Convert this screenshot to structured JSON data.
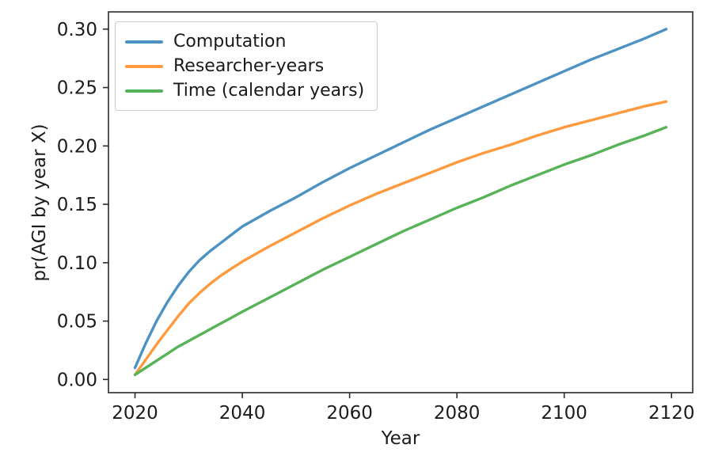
{
  "figure": {
    "background": "#ffffff",
    "axis_color": "#2b2b2b",
    "tick_color": "#1c1c1c",
    "text_color": "#1c1c1c",
    "legend_border_color": "#cccccc"
  },
  "chart_data": {
    "type": "line",
    "title": "",
    "xlabel": "Year",
    "ylabel": "pr(AGI by year X)",
    "grid": false,
    "legend_position": "upper left",
    "xlim": [
      2015.05,
      2123.95
    ],
    "ylim": [
      -0.0113,
      0.3148
    ],
    "xticks": [
      2020,
      2040,
      2060,
      2080,
      2100,
      2120
    ],
    "xtick_labels": [
      "2020",
      "2040",
      "2060",
      "2080",
      "2100",
      "2120"
    ],
    "yticks": [
      0.0,
      0.05,
      0.1,
      0.15,
      0.2,
      0.25,
      0.3
    ],
    "ytick_labels": [
      "0.00",
      "0.05",
      "0.10",
      "0.15",
      "0.20",
      "0.25",
      "0.30"
    ],
    "x": [
      2020,
      2022,
      2024,
      2026,
      2028,
      2030,
      2032,
      2034,
      2036,
      2038,
      2040,
      2045,
      2050,
      2055,
      2060,
      2065,
      2070,
      2075,
      2080,
      2085,
      2090,
      2095,
      2100,
      2105,
      2110,
      2115,
      2119
    ],
    "series": [
      {
        "name": "Computation",
        "color": "#4C92C3",
        "values": [
          0.01,
          0.031,
          0.05,
          0.066,
          0.08,
          0.092,
          0.102,
          0.11,
          0.117,
          0.124,
          0.131,
          0.144,
          0.156,
          0.169,
          0.181,
          0.192,
          0.203,
          0.214,
          0.224,
          0.234,
          0.244,
          0.254,
          0.264,
          0.274,
          0.283,
          0.292,
          0.3
        ]
      },
      {
        "name": "Researcher-years",
        "color": "#FF993E",
        "values": [
          0.004,
          0.017,
          0.03,
          0.042,
          0.054,
          0.065,
          0.074,
          0.082,
          0.089,
          0.095,
          0.101,
          0.114,
          0.126,
          0.138,
          0.149,
          0.159,
          0.168,
          0.177,
          0.186,
          0.194,
          0.201,
          0.209,
          0.216,
          0.222,
          0.228,
          0.234,
          0.238
        ]
      },
      {
        "name": "Time (calendar years)",
        "color": "#57B357",
        "values": [
          0.004,
          0.01,
          0.016,
          0.022,
          0.028,
          0.033,
          0.038,
          0.043,
          0.048,
          0.053,
          0.058,
          0.07,
          0.082,
          0.094,
          0.105,
          0.116,
          0.127,
          0.137,
          0.147,
          0.156,
          0.166,
          0.175,
          0.184,
          0.192,
          0.201,
          0.209,
          0.216
        ]
      }
    ]
  }
}
